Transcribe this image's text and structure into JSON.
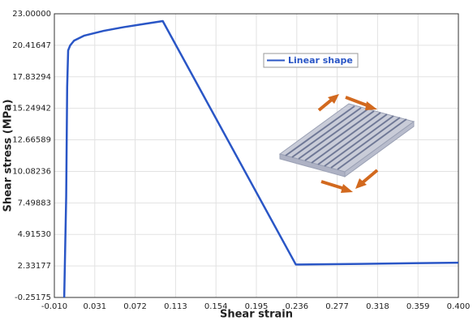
{
  "chart_data": {
    "type": "line",
    "x_label": "Shear strain",
    "y_label": "Shear stress (MPa)",
    "xlim": [
      -0.01,
      0.4
    ],
    "ylim": [
      -0.25175,
      23
    ],
    "xticks": [
      {
        "value": -0.01,
        "label": "-0.010"
      },
      0.031,
      0.072,
      0.113,
      0.154,
      0.195,
      0.236,
      0.277,
      0.318,
      0.359,
      {
        "value": 0.4,
        "label": "0.400"
      }
    ],
    "yticks": [
      -0.25175,
      2.33177,
      {
        "value": 4.9153,
        "label": "4.91530"
      },
      7.49883,
      10.08236,
      12.66589,
      15.24942,
      17.83294,
      20.41647,
      {
        "value": 23,
        "label": "23.00000"
      }
    ],
    "grid": true,
    "legend": "upper-center",
    "series": [
      {
        "name": "Linear shape",
        "color": "#2a56c6",
        "x": [
          0.0,
          0.002,
          0.003,
          0.004,
          0.006,
          0.01,
          0.02,
          0.04,
          0.06,
          0.08,
          0.1,
          0.235,
          0.24,
          0.3,
          0.4
        ],
        "values": [
          -0.25,
          8,
          17,
          20.0,
          20.4,
          20.8,
          21.2,
          21.6,
          21.9,
          22.15,
          22.4,
          2.45,
          2.45,
          2.5,
          2.6
        ]
      }
    ]
  }
}
